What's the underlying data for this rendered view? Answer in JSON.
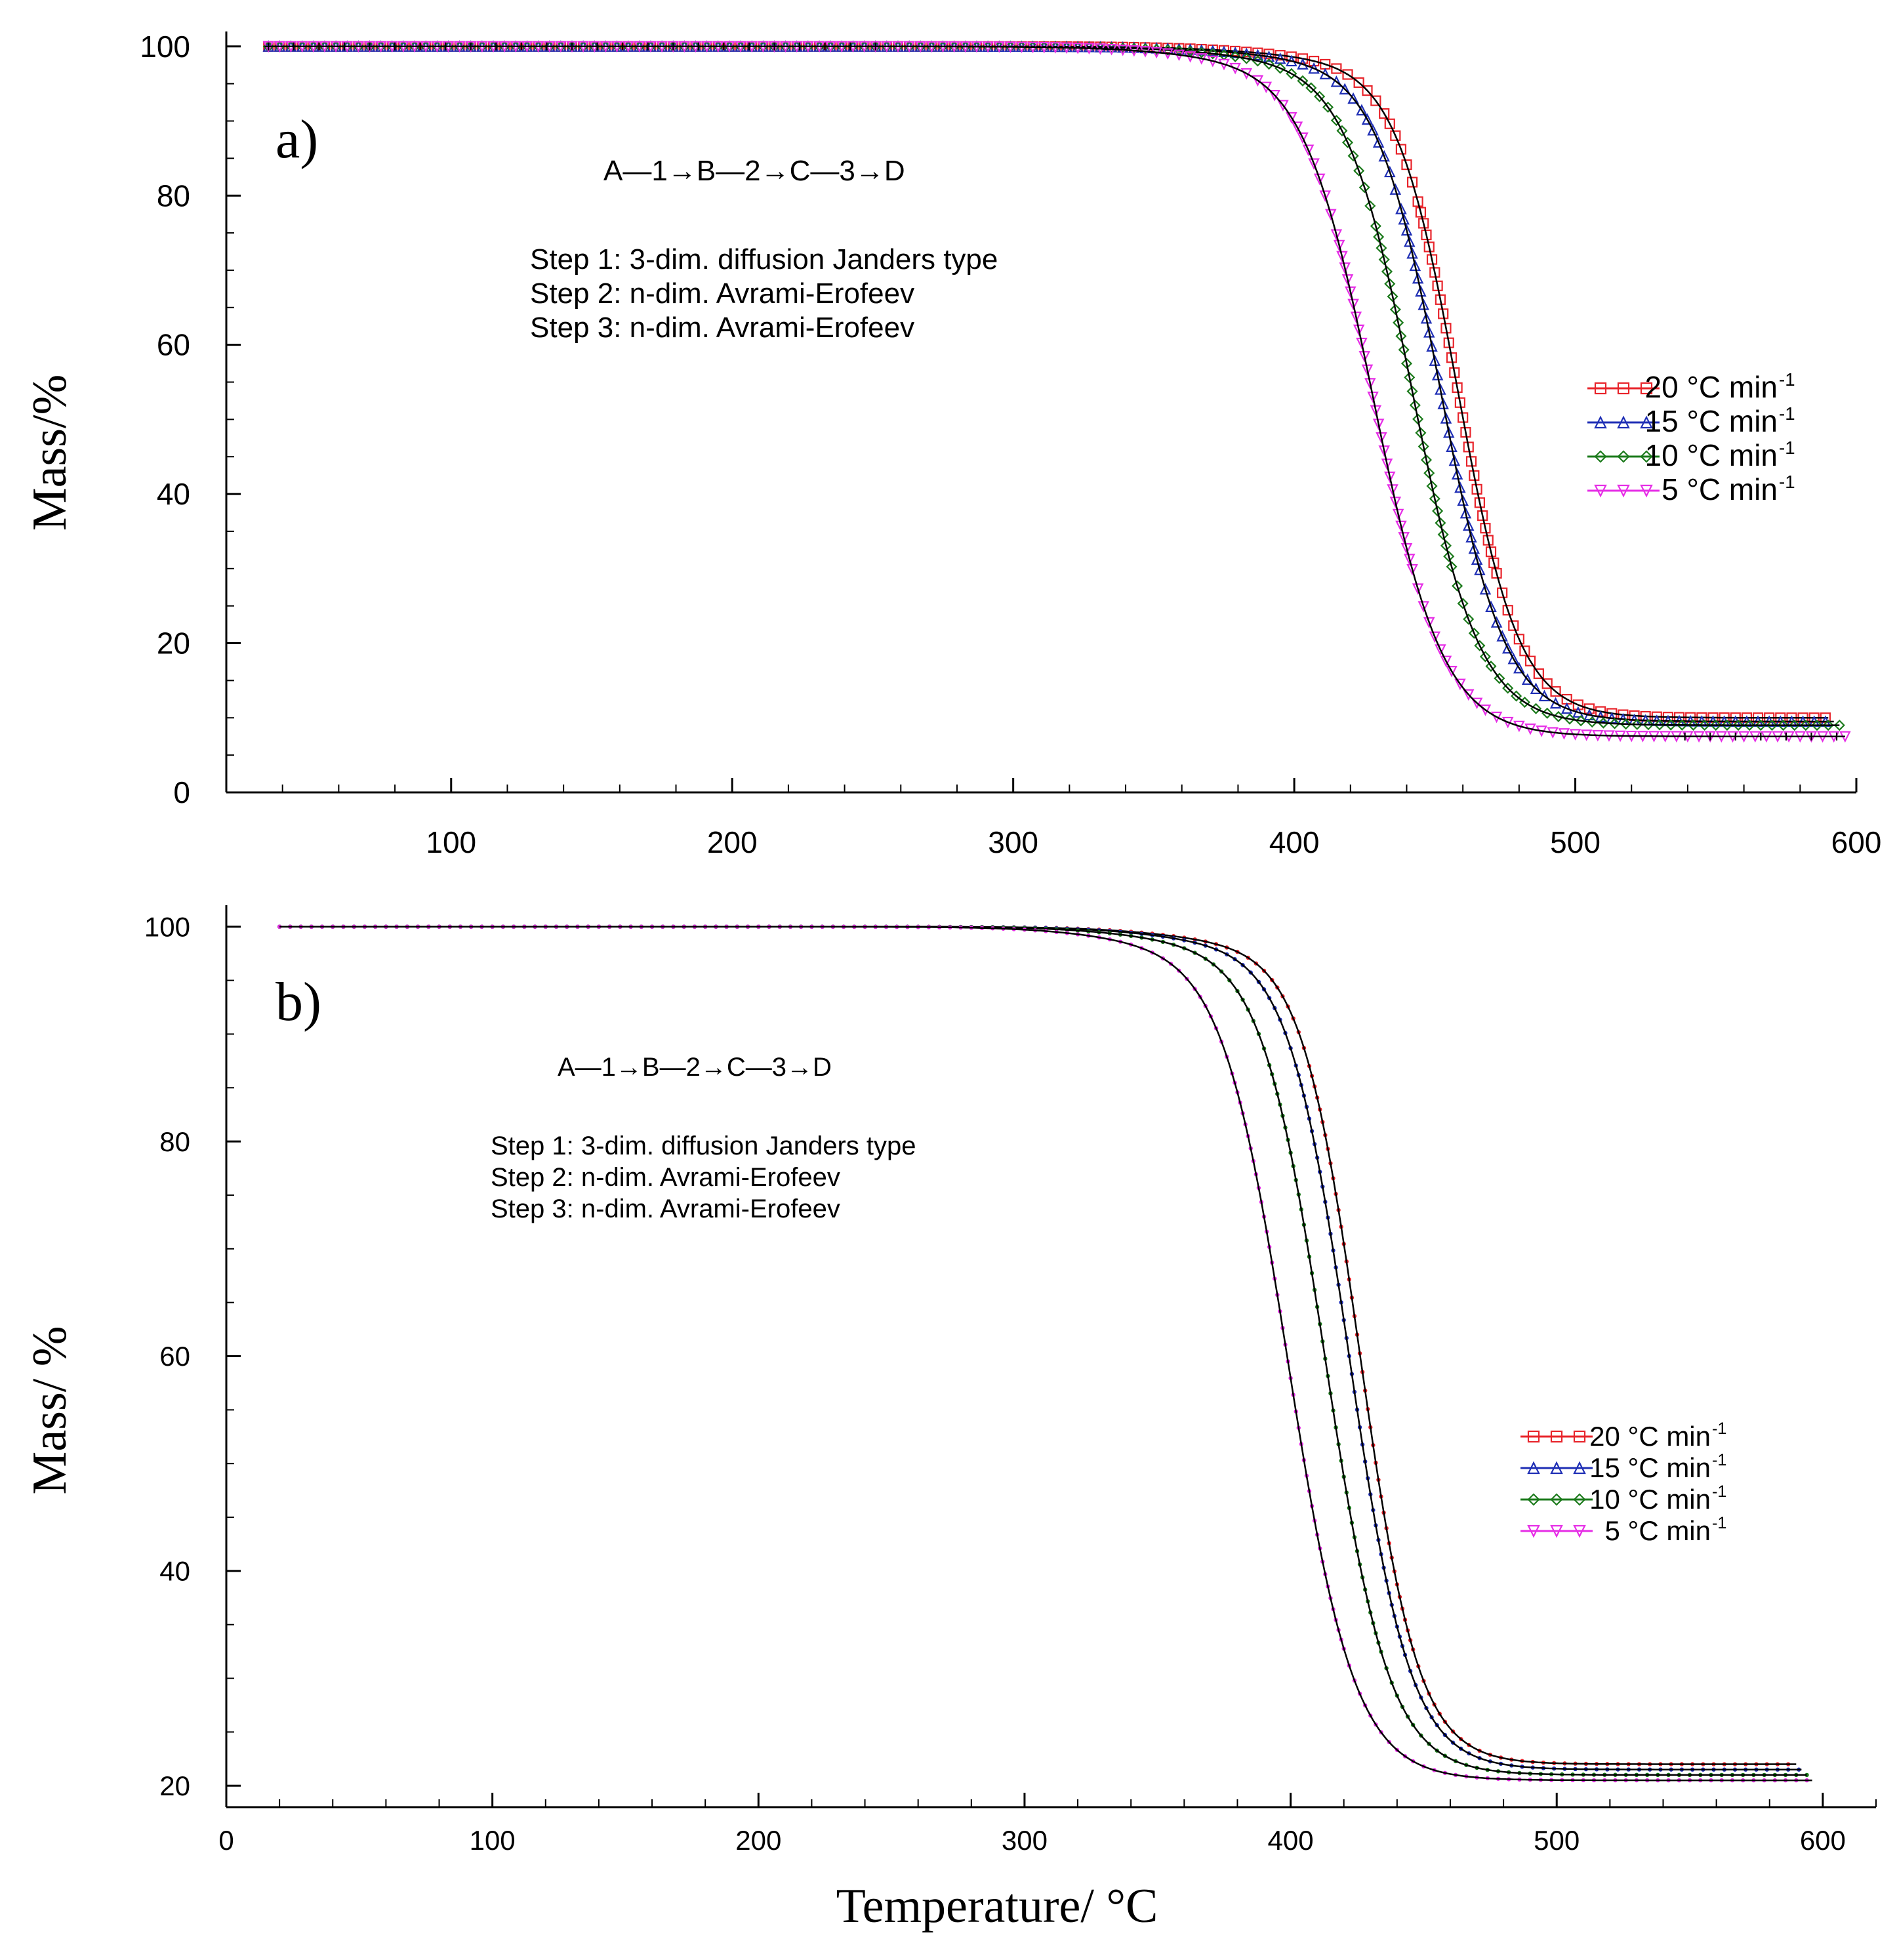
{
  "colors": {
    "red": "#e8242b",
    "blue": "#1f2fb5",
    "green": "#1b7a1b",
    "magenta": "#e62ee6",
    "black": "#000000"
  },
  "xlabel": "Temperature/ °C",
  "chart_data": [
    {
      "type": "line",
      "panel": "a)",
      "ylabel": "Mass/%",
      "xlim": [
        20,
        600
      ],
      "ylim": [
        0,
        102
      ],
      "xticks": [
        100,
        200,
        300,
        400,
        500,
        600
      ],
      "yticks": [
        0,
        20,
        40,
        60,
        80,
        100
      ],
      "scheme": "A—1→B—2→C—3→D",
      "steps": [
        "Step 1: 3-dim. diffusion Janders type",
        "Step 2: n-dim. Avrami-Erofeev",
        "Step 3: n-dim. Avrami-Erofeev"
      ],
      "legend_position": "right",
      "series": [
        {
          "name": "20 °C min",
          "sup": "-1",
          "marker": "square",
          "color": "red",
          "midpoint": 458,
          "width": 11,
          "residue": 10,
          "xend": 590
        },
        {
          "name": "15 °C min",
          "sup": "-1",
          "marker": "triangle-up",
          "color": "blue",
          "midpoint": 452,
          "width": 11.5,
          "residue": 9.5,
          "xend": 592
        },
        {
          "name": "10 °C min",
          "sup": "-1",
          "marker": "diamond",
          "color": "green",
          "midpoint": 442,
          "width": 12,
          "residue": 9,
          "xend": 594
        },
        {
          "name": "5 °C min",
          "sup": "-1",
          "marker": "triangle-down",
          "color": "magenta",
          "midpoint": 428,
          "width": 12.5,
          "residue": 7.5,
          "xend": 596
        }
      ]
    },
    {
      "type": "line",
      "panel": "b)",
      "ylabel": "Mass/ %",
      "xlim": [
        0,
        620
      ],
      "ylim": [
        18,
        102
      ],
      "xticks": [
        0,
        100,
        200,
        300,
        400,
        500,
        600
      ],
      "yticks": [
        20,
        40,
        60,
        80,
        100
      ],
      "scheme": "A—1→B—2→C—3→D",
      "steps": [
        "Step 1: 3-dim. diffusion Janders type",
        "Step 2: n-dim. Avrami-Erofeev",
        "Step 3: n-dim. Avrami-Erofeev"
      ],
      "legend_position": "right",
      "series": [
        {
          "name": "20 °C min",
          "sup": "-1",
          "marker": "square",
          "color": "red",
          "midpoint": 426,
          "width": 11,
          "residue": 22,
          "xend": 590
        },
        {
          "name": "15 °C min",
          "sup": "-1",
          "marker": "triangle-up",
          "color": "blue",
          "midpoint": 422,
          "width": 11.5,
          "residue": 21.5,
          "xend": 592
        },
        {
          "name": "10 °C min",
          "sup": "-1",
          "marker": "diamond",
          "color": "green",
          "midpoint": 413,
          "width": 12,
          "residue": 21,
          "xend": 594
        },
        {
          "name": "5 °C min",
          "sup": "-1",
          "marker": "triangle-down",
          "color": "magenta",
          "midpoint": 399,
          "width": 12.5,
          "residue": 20.5,
          "xend": 596
        }
      ]
    }
  ]
}
